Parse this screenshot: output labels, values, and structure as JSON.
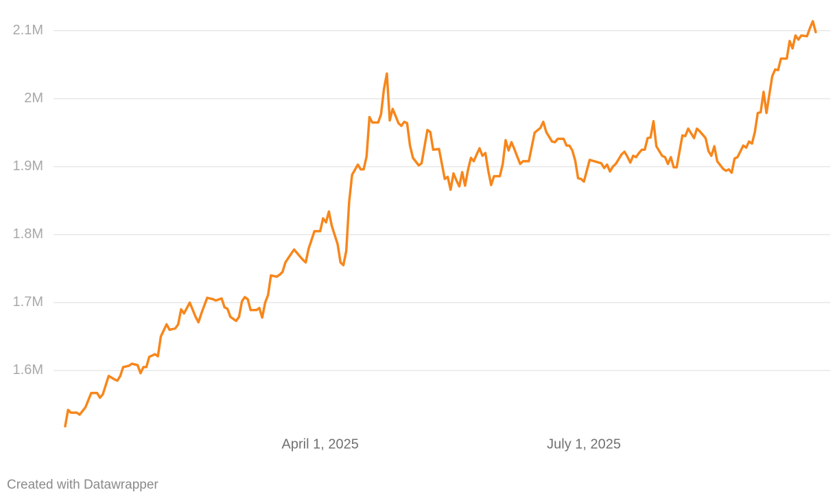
{
  "chart_data": {
    "type": "line",
    "x": [
      "2025-01-03",
      "2025-01-04",
      "2025-01-05",
      "2025-01-07",
      "2025-01-08",
      "2025-01-10",
      "2025-01-12",
      "2025-01-14",
      "2025-01-15",
      "2025-01-16",
      "2025-01-18",
      "2025-01-20",
      "2025-01-21",
      "2025-01-22",
      "2025-01-23",
      "2025-01-25",
      "2025-01-26",
      "2025-01-28",
      "2025-01-29",
      "2025-01-30",
      "2025-01-31",
      "2025-02-01",
      "2025-02-03",
      "2025-02-04",
      "2025-02-05",
      "2025-02-07",
      "2025-02-08",
      "2025-02-10",
      "2025-02-11",
      "2025-02-12",
      "2025-02-13",
      "2025-02-15",
      "2025-02-17",
      "2025-02-18",
      "2025-02-19",
      "2025-02-21",
      "2025-02-23",
      "2025-02-24",
      "2025-02-26",
      "2025-02-27",
      "2025-02-28",
      "2025-03-01",
      "2025-03-03",
      "2025-03-04",
      "2025-03-05",
      "2025-03-06",
      "2025-03-07",
      "2025-03-08",
      "2025-03-10",
      "2025-03-11",
      "2025-03-12",
      "2025-03-13",
      "2025-03-14",
      "2025-03-15",
      "2025-03-17",
      "2025-03-18",
      "2025-03-19",
      "2025-03-20",
      "2025-03-22",
      "2025-03-23",
      "2025-03-24",
      "2025-03-26",
      "2025-03-27",
      "2025-03-28",
      "2025-03-30",
      "2025-04-01",
      "2025-04-02",
      "2025-04-03",
      "2025-04-04",
      "2025-04-05",
      "2025-04-07",
      "2025-04-08",
      "2025-04-09",
      "2025-04-10",
      "2025-04-11",
      "2025-04-12",
      "2025-04-14",
      "2025-04-15",
      "2025-04-16",
      "2025-04-17",
      "2025-04-18",
      "2025-04-19",
      "2025-04-21",
      "2025-04-22",
      "2025-04-23",
      "2025-04-24",
      "2025-04-25",
      "2025-04-26",
      "2025-04-27",
      "2025-04-28",
      "2025-04-29",
      "2025-04-30",
      "2025-05-01",
      "2025-05-02",
      "2025-05-03",
      "2025-05-05",
      "2025-05-06",
      "2025-05-08",
      "2025-05-09",
      "2025-05-10",
      "2025-05-12",
      "2025-05-14",
      "2025-05-15",
      "2025-05-16",
      "2025-05-17",
      "2025-05-18",
      "2025-05-19",
      "2025-05-20",
      "2025-05-21",
      "2025-05-22",
      "2025-05-23",
      "2025-05-24",
      "2025-05-25",
      "2025-05-26",
      "2025-05-27",
      "2025-05-28",
      "2025-05-29",
      "2025-05-30",
      "2025-05-31",
      "2025-06-02",
      "2025-06-03",
      "2025-06-04",
      "2025-06-05",
      "2025-06-06",
      "2025-06-07",
      "2025-06-08",
      "2025-06-09",
      "2025-06-10",
      "2025-06-12",
      "2025-06-14",
      "2025-06-16",
      "2025-06-17",
      "2025-06-18",
      "2025-06-20",
      "2025-06-21",
      "2025-06-22",
      "2025-06-24",
      "2025-06-25",
      "2025-06-26",
      "2025-06-27",
      "2025-06-28",
      "2025-06-29",
      "2025-06-30",
      "2025-07-01",
      "2025-07-03",
      "2025-07-07",
      "2025-07-08",
      "2025-07-09",
      "2025-07-10",
      "2025-07-11",
      "2025-07-12",
      "2025-07-13",
      "2025-07-14",
      "2025-07-15",
      "2025-07-16",
      "2025-07-17",
      "2025-07-18",
      "2025-07-19",
      "2025-07-20",
      "2025-07-21",
      "2025-07-22",
      "2025-07-23",
      "2025-07-24",
      "2025-07-25",
      "2025-07-26",
      "2025-07-28",
      "2025-07-29",
      "2025-07-30",
      "2025-07-31",
      "2025-08-01",
      "2025-08-02",
      "2025-08-04",
      "2025-08-05",
      "2025-08-06",
      "2025-08-07",
      "2025-08-08",
      "2025-08-09",
      "2025-08-10",
      "2025-08-12",
      "2025-08-13",
      "2025-08-14",
      "2025-08-15",
      "2025-08-16",
      "2025-08-18",
      "2025-08-19",
      "2025-08-20",
      "2025-08-21",
      "2025-08-22",
      "2025-08-23",
      "2025-08-25",
      "2025-08-26",
      "2025-08-27",
      "2025-08-28",
      "2025-08-29",
      "2025-08-30",
      "2025-08-31",
      "2025-09-01",
      "2025-09-02",
      "2025-09-03",
      "2025-09-04",
      "2025-09-05",
      "2025-09-06",
      "2025-09-07",
      "2025-09-09",
      "2025-09-10",
      "2025-09-11",
      "2025-09-12",
      "2025-09-13",
      "2025-09-14",
      "2025-09-16",
      "2025-09-17",
      "2025-09-18",
      "2025-09-19"
    ],
    "values": [
      1518000,
      1542000,
      1538000,
      1538000,
      1535000,
      1546000,
      1567000,
      1567000,
      1560000,
      1565000,
      1592000,
      1587000,
      1585000,
      1592000,
      1605000,
      1607000,
      1610000,
      1608000,
      1596000,
      1605000,
      1605000,
      1620000,
      1624000,
      1621000,
      1650000,
      1668000,
      1660000,
      1662000,
      1668000,
      1690000,
      1684000,
      1700000,
      1679000,
      1671000,
      1684000,
      1707000,
      1705000,
      1703000,
      1706000,
      1693000,
      1691000,
      1679000,
      1673000,
      1679000,
      1702000,
      1708000,
      1705000,
      1689000,
      1689000,
      1692000,
      1678000,
      1700000,
      1711000,
      1740000,
      1738000,
      1741000,
      1745000,
      1759000,
      1772000,
      1778000,
      1773000,
      1763000,
      1759000,
      1779000,
      1805000,
      1805000,
      1824000,
      1818000,
      1834000,
      1813000,
      1786000,
      1759000,
      1755000,
      1776000,
      1848000,
      1888000,
      1903000,
      1896000,
      1896000,
      1915000,
      1973000,
      1965000,
      1965000,
      1977000,
      2014000,
      2037000,
      1968000,
      1985000,
      1975000,
      1964000,
      1960000,
      1966000,
      1964000,
      1931000,
      1913000,
      1902000,
      1905000,
      1954000,
      1951000,
      1925000,
      1926000,
      1882000,
      1885000,
      1866000,
      1890000,
      1880000,
      1871000,
      1892000,
      1872000,
      1895000,
      1913000,
      1908000,
      1918000,
      1927000,
      1916000,
      1920000,
      1894000,
      1873000,
      1886000,
      1886000,
      1904000,
      1939000,
      1924000,
      1936000,
      1926000,
      1915000,
      1904000,
      1908000,
      1908000,
      1950000,
      1957000,
      1966000,
      1951000,
      1937000,
      1936000,
      1941000,
      1941000,
      1931000,
      1931000,
      1924000,
      1909000,
      1883000,
      1882000,
      1878000,
      1910000,
      1905000,
      1898000,
      1903000,
      1893000,
      1900000,
      1904000,
      1911000,
      1918000,
      1922000,
      1915000,
      1906000,
      1916000,
      1914000,
      1920000,
      1925000,
      1925000,
      1942000,
      1943000,
      1967000,
      1930000,
      1916000,
      1914000,
      1904000,
      1914000,
      1899000,
      1899000,
      1946000,
      1945000,
      1956000,
      1949000,
      1942000,
      1956000,
      1952000,
      1942000,
      1923000,
      1916000,
      1930000,
      1908000,
      1897000,
      1894000,
      1896000,
      1891000,
      1912000,
      1914000,
      1931000,
      1928000,
      1937000,
      1934000,
      1951000,
      1979000,
      1980000,
      2010000,
      1979000,
      2006000,
      2033000,
      2043000,
      2042000,
      2059000,
      2059000,
      2085000,
      2074000,
      2093000,
      2087000,
      2093000,
      2092000,
      2104000,
      2114000,
      2098000
    ],
    "color": "#f7861b",
    "xlim": [
      "2025-01-03",
      "2025-09-19"
    ],
    "xticks": [
      {
        "value": "2025-04-01",
        "label": "April 1, 2025"
      },
      {
        "value": "2025-07-01",
        "label": "July 1, 2025"
      }
    ],
    "ylim": [
      1510000,
      2120000
    ],
    "yticks": [
      {
        "value": 1600000,
        "label": "1.6M"
      },
      {
        "value": 1700000,
        "label": "1.7M"
      },
      {
        "value": 1800000,
        "label": "1.8M"
      },
      {
        "value": 1900000,
        "label": "1.9M"
      },
      {
        "value": 2000000,
        "label": "2M"
      },
      {
        "value": 2100000,
        "label": "2.1M"
      }
    ],
    "grid": true,
    "footer": "Created with Datawrapper"
  }
}
